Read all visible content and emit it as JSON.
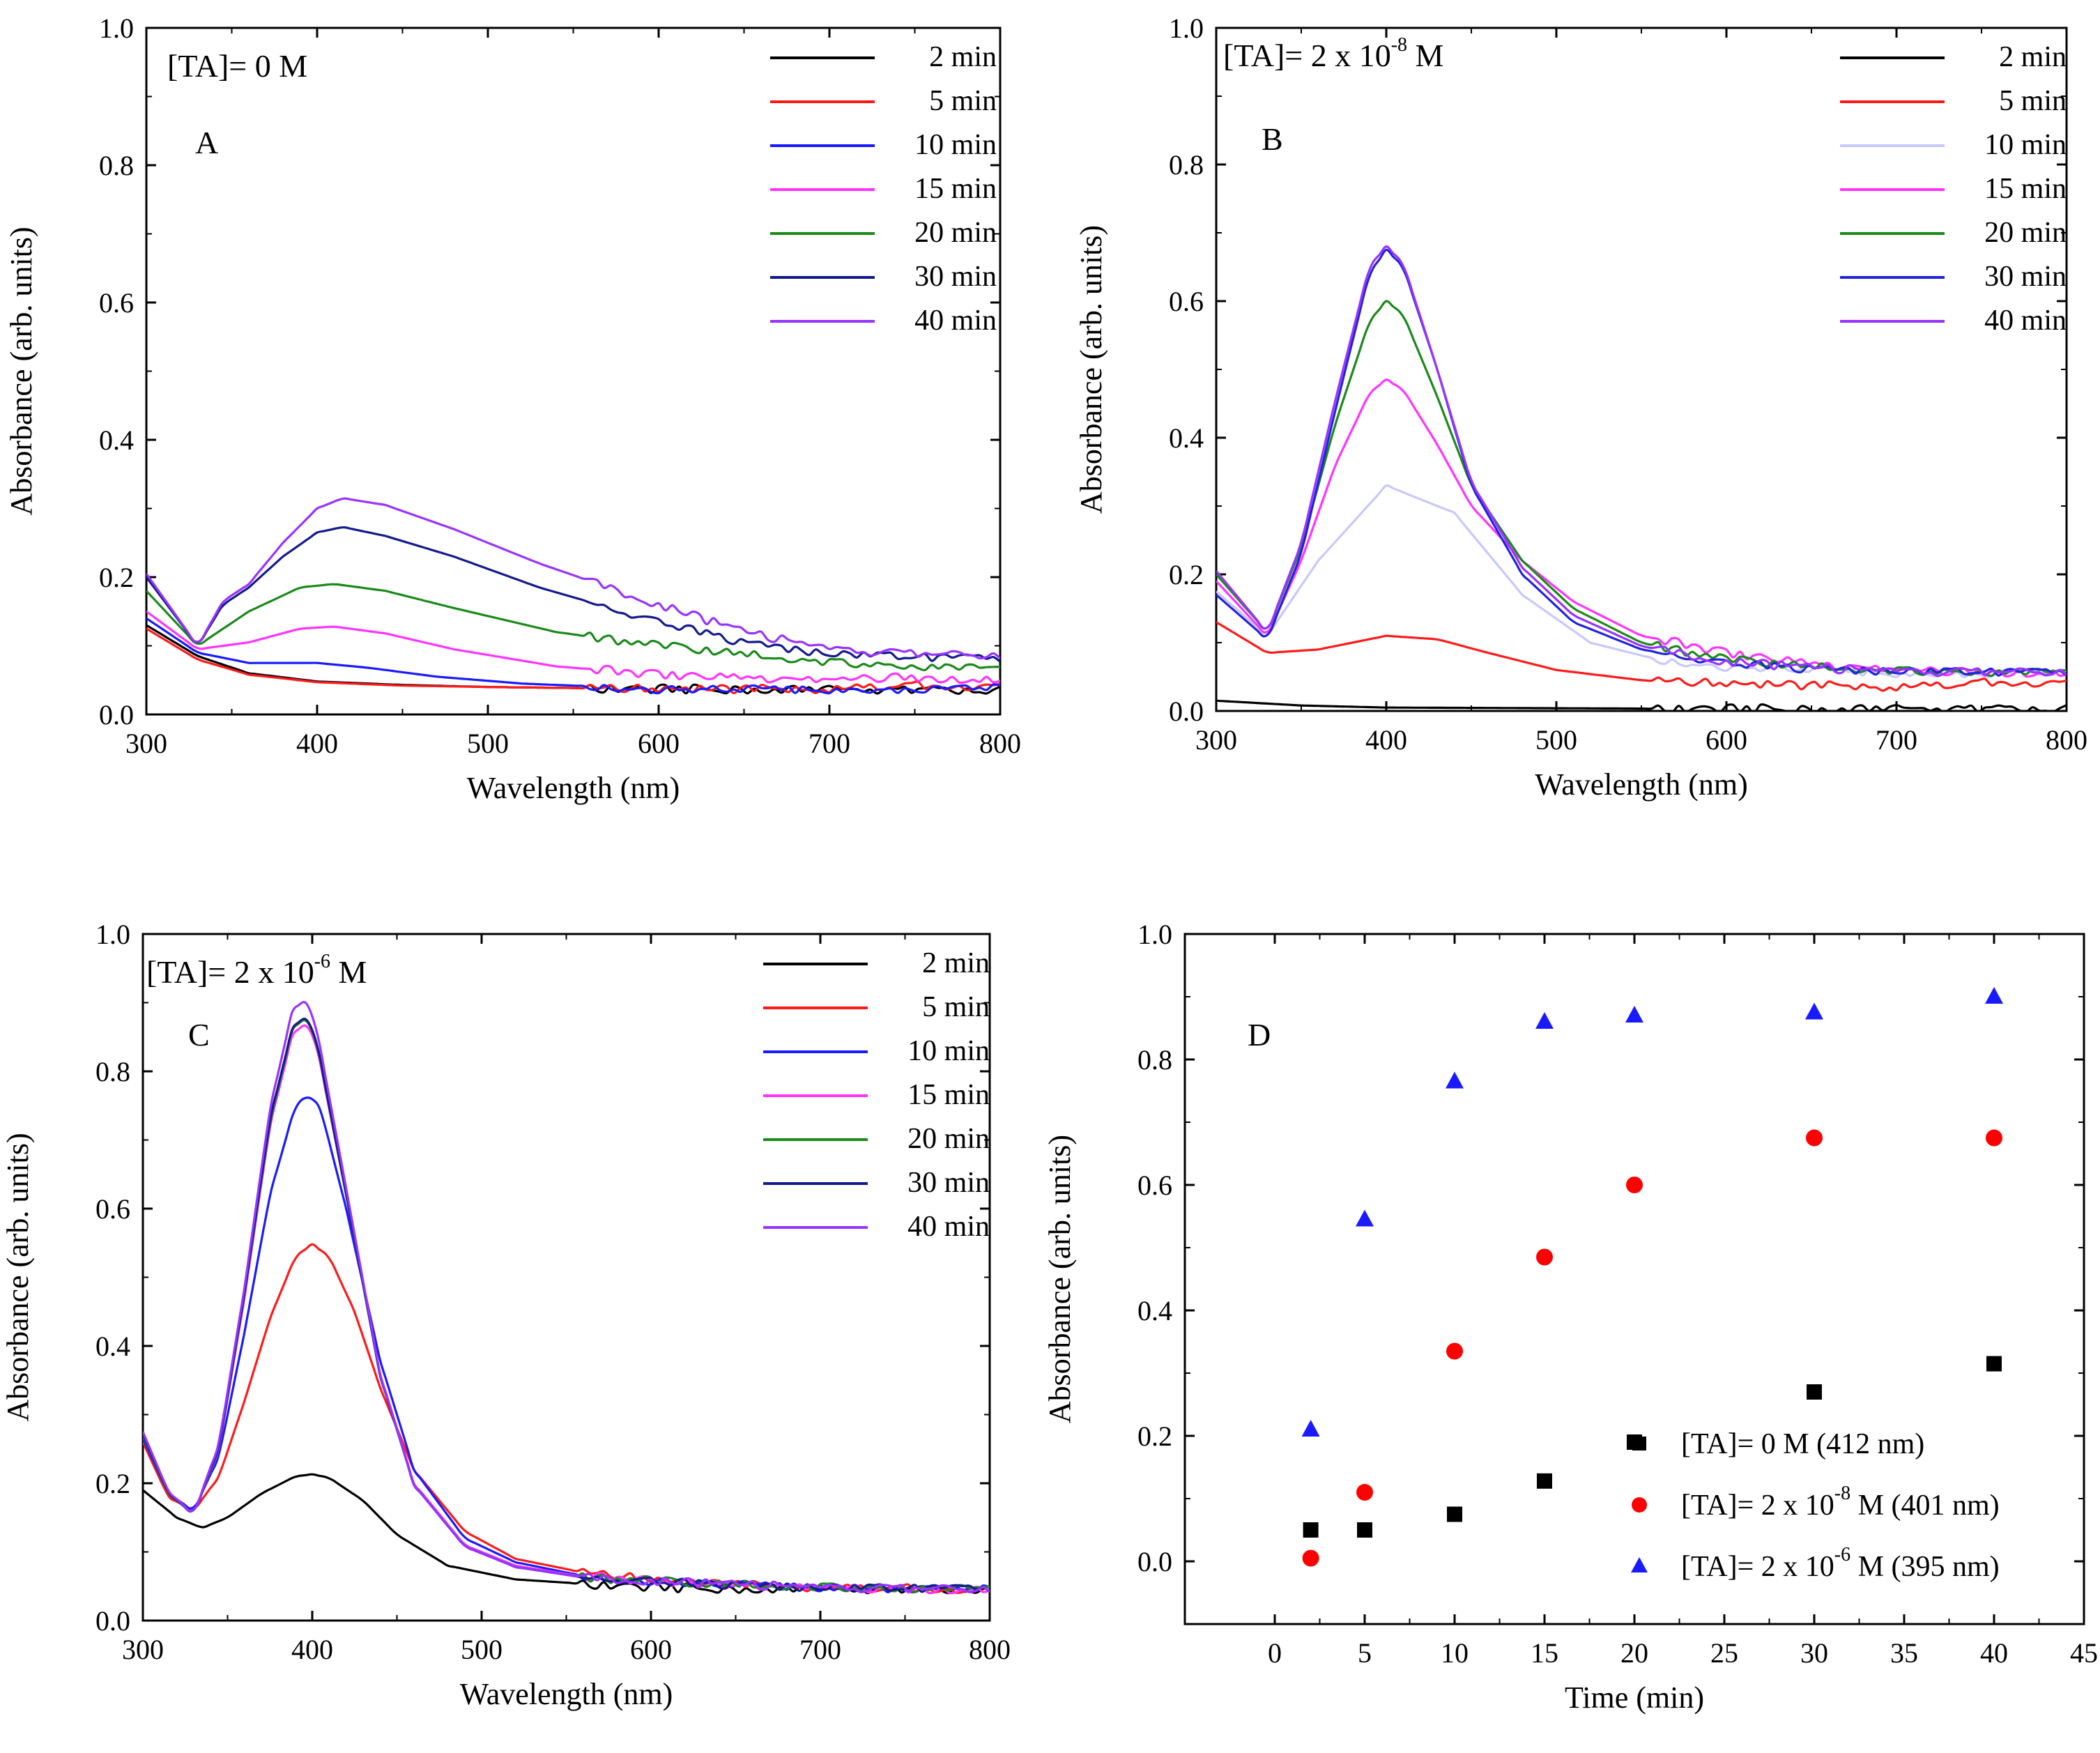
{
  "colors": {
    "t2": "#000000",
    "t5": "#ff1a1a",
    "t10": "#1a1aff",
    "t15": "#ff33ff",
    "t20": "#1a8a1a",
    "t30": "#141a8c",
    "t40": "#9933ff",
    "t10_b": "#c8c8ff",
    "t30_b": "#2222dd",
    "black_sq": "#000000",
    "red_circle": "#ff0000",
    "blue_tri": "#1a1aff"
  },
  "chart_data": [
    {
      "id": "A",
      "type": "line",
      "panel_label": "A",
      "annotation": {
        "prefix": "[TA]= 0 M",
        "sup": "",
        "suffix": ""
      },
      "xlabel": "Wavelength (nm)",
      "ylabel": "Absorbance (arb. units)",
      "xlim": [
        300,
        800
      ],
      "ylim": [
        0,
        1.0
      ],
      "xticks": [
        300,
        400,
        500,
        600,
        700,
        800
      ],
      "yticks": [
        "0.0",
        "0.2",
        "0.4",
        "0.6",
        "0.8",
        "1.0"
      ],
      "series": [
        {
          "name": "2 min",
          "color": "t2",
          "x": [
            300,
            330,
            360,
            400,
            450,
            500,
            600,
            700,
            800
          ],
          "y": [
            0.13,
            0.085,
            0.06,
            0.048,
            0.043,
            0.04,
            0.037,
            0.036,
            0.035
          ]
        },
        {
          "name": "5 min",
          "color": "t5",
          "x": [
            300,
            330,
            360,
            400,
            450,
            500,
            600,
            700,
            740,
            800
          ],
          "y": [
            0.125,
            0.08,
            0.058,
            0.047,
            0.042,
            0.04,
            0.037,
            0.037,
            0.042,
            0.04
          ]
        },
        {
          "name": "10 min",
          "color": "t10",
          "x": [
            300,
            330,
            360,
            400,
            430,
            470,
            520,
            600,
            700,
            800
          ],
          "y": [
            0.14,
            0.09,
            0.075,
            0.075,
            0.068,
            0.055,
            0.045,
            0.037,
            0.036,
            0.038
          ]
        },
        {
          "name": "15 min",
          "color": "t15",
          "x": [
            300,
            330,
            360,
            390,
            410,
            440,
            480,
            540,
            600,
            700,
            740,
            800
          ],
          "y": [
            0.15,
            0.095,
            0.105,
            0.125,
            0.128,
            0.118,
            0.095,
            0.07,
            0.058,
            0.05,
            0.055,
            0.05
          ]
        },
        {
          "name": "20 min",
          "color": "t20",
          "x": [
            300,
            330,
            360,
            390,
            410,
            440,
            480,
            540,
            600,
            650,
            700,
            750,
            800
          ],
          "y": [
            0.18,
            0.1,
            0.15,
            0.185,
            0.19,
            0.18,
            0.155,
            0.12,
            0.1,
            0.088,
            0.075,
            0.07,
            0.065
          ]
        },
        {
          "name": "30 min",
          "color": "t30",
          "x": [
            300,
            330,
            345,
            360,
            380,
            400,
            415,
            440,
            480,
            530,
            600,
            650,
            700,
            750,
            800
          ],
          "y": [
            0.2,
            0.1,
            0.16,
            0.185,
            0.23,
            0.265,
            0.273,
            0.26,
            0.23,
            0.185,
            0.135,
            0.105,
            0.088,
            0.083,
            0.08
          ]
        },
        {
          "name": "40 min",
          "color": "t40",
          "x": [
            300,
            330,
            345,
            360,
            380,
            400,
            415,
            440,
            480,
            530,
            600,
            650,
            700,
            750,
            800
          ],
          "y": [
            0.205,
            0.1,
            0.165,
            0.19,
            0.25,
            0.3,
            0.315,
            0.305,
            0.27,
            0.22,
            0.16,
            0.12,
            0.095,
            0.088,
            0.085
          ]
        }
      ]
    },
    {
      "id": "B",
      "type": "line",
      "panel_label": "B",
      "annotation": {
        "prefix": "[TA]= 2 x 10",
        "sup": "-8",
        "suffix": " M"
      },
      "xlabel": "Wavelength (nm)",
      "ylabel": "Absorbance (arb. units)",
      "xlim": [
        300,
        800
      ],
      "ylim": [
        0,
        1.0
      ],
      "xticks": [
        300,
        400,
        500,
        600,
        700,
        800
      ],
      "yticks": [
        "0.0",
        "0.2",
        "0.4",
        "0.6",
        "0.8",
        "1.0"
      ],
      "series": [
        {
          "name": "2 min",
          "color": "t2",
          "x": [
            300,
            350,
            400,
            500,
            600,
            700,
            800
          ],
          "y": [
            0.015,
            0.008,
            0.005,
            0.004,
            0.003,
            0.003,
            0.003
          ]
        },
        {
          "name": "5 min",
          "color": "t5",
          "x": [
            300,
            330,
            360,
            400,
            430,
            460,
            500,
            550,
            600,
            700,
            760,
            800
          ],
          "y": [
            0.13,
            0.085,
            0.09,
            0.11,
            0.105,
            0.085,
            0.06,
            0.045,
            0.04,
            0.035,
            0.042,
            0.04
          ]
        },
        {
          "name": "10 min",
          "color": "t10_b",
          "x": [
            300,
            330,
            360,
            400,
            440,
            480,
            520,
            560,
            600,
            700,
            800
          ],
          "y": [
            0.175,
            0.11,
            0.22,
            0.33,
            0.29,
            0.17,
            0.1,
            0.075,
            0.065,
            0.055,
            0.055
          ]
        },
        {
          "name": "15 min",
          "color": "t15",
          "x": [
            300,
            330,
            350,
            370,
            390,
            400,
            410,
            430,
            450,
            480,
            510,
            550,
            600,
            650,
            700,
            800
          ],
          "y": [
            0.19,
            0.11,
            0.22,
            0.36,
            0.465,
            0.485,
            0.47,
            0.39,
            0.3,
            0.22,
            0.16,
            0.11,
            0.085,
            0.07,
            0.06,
            0.055
          ]
        },
        {
          "name": "20 min",
          "color": "t20",
          "x": [
            300,
            330,
            350,
            370,
            390,
            400,
            410,
            430,
            450,
            480,
            510,
            550,
            600,
            650,
            700,
            800
          ],
          "y": [
            0.2,
            0.115,
            0.24,
            0.42,
            0.57,
            0.6,
            0.58,
            0.46,
            0.33,
            0.22,
            0.15,
            0.1,
            0.075,
            0.065,
            0.058,
            0.055
          ]
        },
        {
          "name": "30 min",
          "color": "t30_b",
          "x": [
            300,
            330,
            350,
            370,
            390,
            400,
            410,
            430,
            450,
            480,
            510,
            550,
            600,
            650,
            700,
            800
          ],
          "y": [
            0.17,
            0.105,
            0.23,
            0.44,
            0.64,
            0.675,
            0.65,
            0.5,
            0.33,
            0.2,
            0.13,
            0.09,
            0.07,
            0.062,
            0.058,
            0.055
          ]
        },
        {
          "name": "40 min",
          "color": "t40",
          "x": [
            300,
            330,
            350,
            370,
            390,
            400,
            410,
            430,
            450,
            480,
            510,
            550,
            600,
            650,
            700,
            800
          ],
          "y": [
            0.205,
            0.115,
            0.245,
            0.455,
            0.65,
            0.68,
            0.655,
            0.5,
            0.335,
            0.21,
            0.14,
            0.095,
            0.072,
            0.063,
            0.058,
            0.056
          ]
        }
      ]
    },
    {
      "id": "C",
      "type": "line",
      "panel_label": "C",
      "annotation": {
        "prefix": "[TA]= 2 x 10",
        "sup": "-6",
        "suffix": " M"
      },
      "xlabel": "Wavelength (nm)",
      "ylabel": "Absorbance (arb. units)",
      "xlim": [
        300,
        800
      ],
      "ylim": [
        0,
        1.0
      ],
      "xticks": [
        300,
        400,
        500,
        600,
        700,
        800
      ],
      "yticks": [
        "0.0",
        "0.2",
        "0.4",
        "0.6",
        "0.8",
        "1.0"
      ],
      "series": [
        {
          "name": "2 min",
          "color": "t2",
          "x": [
            300,
            320,
            335,
            350,
            370,
            390,
            400,
            410,
            430,
            450,
            480,
            520,
            570,
            620,
            700,
            800
          ],
          "y": [
            0.19,
            0.15,
            0.135,
            0.15,
            0.185,
            0.21,
            0.213,
            0.208,
            0.175,
            0.125,
            0.08,
            0.06,
            0.052,
            0.047,
            0.045,
            0.045
          ]
        },
        {
          "name": "5 min",
          "color": "t5",
          "x": [
            300,
            315,
            330,
            345,
            360,
            375,
            390,
            400,
            410,
            425,
            440,
            460,
            490,
            520,
            560,
            620,
            700,
            800
          ],
          "y": [
            0.26,
            0.18,
            0.16,
            0.21,
            0.32,
            0.44,
            0.53,
            0.548,
            0.53,
            0.45,
            0.34,
            0.22,
            0.13,
            0.09,
            0.07,
            0.055,
            0.048,
            0.045
          ]
        },
        {
          "name": "10 min",
          "color": "t10",
          "x": [
            300,
            315,
            330,
            345,
            360,
            375,
            390,
            398,
            405,
            420,
            440,
            460,
            490,
            520,
            560,
            620,
            700,
            800
          ],
          "y": [
            0.265,
            0.185,
            0.16,
            0.24,
            0.42,
            0.62,
            0.75,
            0.765,
            0.745,
            0.6,
            0.38,
            0.22,
            0.12,
            0.085,
            0.065,
            0.055,
            0.048,
            0.045
          ]
        },
        {
          "name": "15 min",
          "color": "t15",
          "x": [
            300,
            315,
            330,
            345,
            360,
            375,
            388,
            395,
            402,
            420,
            440,
            460,
            490,
            520,
            560,
            620,
            700,
            800
          ],
          "y": [
            0.27,
            0.185,
            0.155,
            0.25,
            0.47,
            0.72,
            0.85,
            0.87,
            0.845,
            0.62,
            0.36,
            0.2,
            0.11,
            0.08,
            0.064,
            0.055,
            0.048,
            0.045
          ]
        },
        {
          "name": "20 min",
          "color": "t20",
          "x": [
            300,
            315,
            330,
            345,
            360,
            375,
            388,
            395,
            402,
            420,
            440,
            460,
            490,
            520,
            560,
            620,
            700,
            800
          ],
          "y": [
            0.27,
            0.185,
            0.155,
            0.252,
            0.475,
            0.725,
            0.858,
            0.878,
            0.85,
            0.62,
            0.358,
            0.198,
            0.108,
            0.078,
            0.063,
            0.055,
            0.048,
            0.045
          ]
        },
        {
          "name": "30 min",
          "color": "t30",
          "x": [
            300,
            315,
            330,
            345,
            360,
            375,
            388,
            395,
            402,
            420,
            440,
            460,
            490,
            520,
            560,
            620,
            700,
            800
          ],
          "y": [
            0.272,
            0.186,
            0.155,
            0.254,
            0.478,
            0.73,
            0.86,
            0.88,
            0.852,
            0.622,
            0.358,
            0.198,
            0.108,
            0.078,
            0.063,
            0.055,
            0.048,
            0.045
          ]
        },
        {
          "name": "40 min",
          "color": "t40",
          "x": [
            300,
            315,
            330,
            345,
            360,
            375,
            388,
            395,
            402,
            420,
            440,
            460,
            490,
            520,
            560,
            620,
            700,
            800
          ],
          "y": [
            0.275,
            0.188,
            0.155,
            0.258,
            0.485,
            0.745,
            0.885,
            0.905,
            0.87,
            0.63,
            0.36,
            0.198,
            0.108,
            0.078,
            0.063,
            0.055,
            0.048,
            0.045
          ]
        }
      ]
    },
    {
      "id": "D",
      "type": "scatter",
      "panel_label": "D",
      "xlabel": "Time (min)",
      "ylabel": "Absorbance (arb. units)",
      "xlim": [
        -5,
        45
      ],
      "ylim": [
        -0.1,
        1.0
      ],
      "xticks": [
        0,
        5,
        10,
        15,
        20,
        25,
        30,
        35,
        40,
        45
      ],
      "yticks": [
        "0.0",
        "0.2",
        "0.4",
        "0.6",
        "0.8",
        "1.0"
      ],
      "series": [
        {
          "name": "[TA]= 0 M  (412 nm)",
          "legend": {
            "prefix": "[TA]= 0 M  (412 nm)",
            "sup": "",
            "suffix": ""
          },
          "marker": "square",
          "color": "black_sq",
          "x": [
            2,
            5,
            10,
            15,
            20,
            30,
            40
          ],
          "y": [
            0.05,
            0.05,
            0.075,
            0.128,
            0.19,
            0.27,
            0.315
          ]
        },
        {
          "name": "[TA]= 2 x 10-8 M  (401 nm)",
          "legend": {
            "prefix": "[TA]= 2 x 10",
            "sup": "-8",
            "suffix": " M  (401 nm)"
          },
          "marker": "circle",
          "color": "red_circle",
          "x": [
            2,
            5,
            10,
            15,
            20,
            30,
            40
          ],
          "y": [
            0.005,
            0.11,
            0.335,
            0.485,
            0.6,
            0.675,
            0.675
          ]
        },
        {
          "name": "[TA]= 2 x 10-6 M  (395 nm)",
          "legend": {
            "prefix": "[TA]= 2 x 10",
            "sup": "-6",
            "suffix": " M  (395 nm)"
          },
          "marker": "triangle",
          "color": "blue_tri",
          "x": [
            2,
            5,
            10,
            15,
            20,
            30,
            40
          ],
          "y": [
            0.21,
            0.545,
            0.765,
            0.86,
            0.87,
            0.875,
            0.9
          ]
        }
      ]
    }
  ]
}
